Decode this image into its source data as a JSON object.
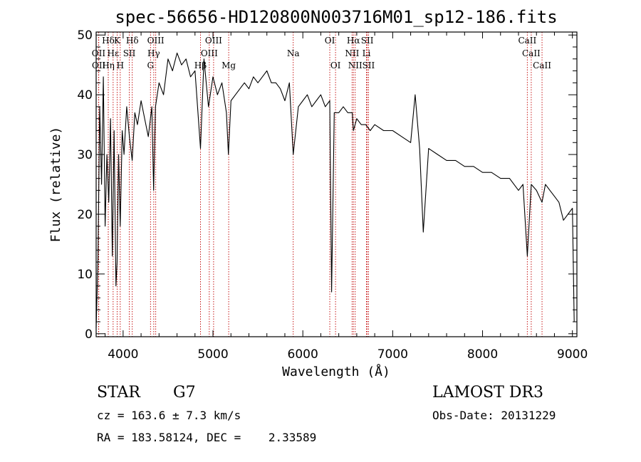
{
  "chart_data": {
    "type": "line",
    "title": "spec-56656-HD120800N003716M01_sp12-186.fits",
    "xlabel": "Wavelength (Å)",
    "ylabel": "Flux (relative)",
    "xlim": [
      3700,
      9050
    ],
    "ylim": [
      -0.5,
      50.5
    ],
    "x_ticks": [
      4000,
      5000,
      6000,
      7000,
      8000,
      9000
    ],
    "y_ticks": [
      0,
      10,
      20,
      30,
      40,
      50
    ],
    "grid": false,
    "series": [
      {
        "x": [
          3700,
          3720,
          3740,
          3760,
          3780,
          3800,
          3820,
          3840,
          3860,
          3880,
          3900,
          3920,
          3933,
          3950,
          3968,
          3990,
          4010,
          4040,
          4070,
          4101,
          4130,
          4160,
          4200,
          4240,
          4280,
          4320,
          4340,
          4360,
          4400,
          4450,
          4500,
          4550,
          4600,
          4650,
          4700,
          4750,
          4800,
          4861,
          4900,
          4950,
          5000,
          5050,
          5100,
          5150,
          5172,
          5200,
          5250,
          5300,
          5350,
          5400,
          5450,
          5500,
          5550,
          5600,
          5650,
          5700,
          5750,
          5800,
          5850,
          5893,
          5950,
          6000,
          6050,
          6100,
          6150,
          6200,
          6250,
          6300,
          6320,
          6350,
          6400,
          6450,
          6500,
          6550,
          6563,
          6600,
          6650,
          6700,
          6750,
          6800,
          6900,
          7000,
          7100,
          7200,
          7250,
          7300,
          7340,
          7400,
          7500,
          7600,
          7700,
          7800,
          7900,
          8000,
          8100,
          8200,
          8300,
          8400,
          8450,
          8498,
          8542,
          8600,
          8662,
          8700,
          8750,
          8800,
          8850,
          8900,
          8950,
          9000,
          9020
        ],
        "y": [
          1,
          12,
          38,
          25,
          43,
          18,
          30,
          22,
          36,
          13,
          34,
          8,
          12,
          30,
          18,
          34,
          30,
          38,
          33,
          29,
          37,
          35,
          39,
          36,
          33,
          38,
          24,
          38,
          42,
          40,
          46,
          44,
          47,
          45,
          46,
          43,
          44,
          31,
          46,
          38,
          43,
          40,
          42,
          37,
          30,
          39,
          40,
          41,
          42,
          41,
          43,
          42,
          43,
          44,
          42,
          42,
          41,
          39,
          42,
          30,
          38,
          39,
          40,
          38,
          39,
          40,
          38,
          39,
          7,
          37,
          37,
          38,
          37,
          37,
          34,
          36,
          35,
          35,
          34,
          35,
          34,
          34,
          33,
          32,
          40,
          31,
          17,
          31,
          30,
          29,
          29,
          28,
          28,
          27,
          27,
          26,
          26,
          24,
          25,
          13,
          25,
          24,
          22,
          25,
          24,
          23,
          22,
          19,
          20,
          21,
          2
        ]
      }
    ]
  },
  "lines": [
    {
      "label": "Hδ",
      "x": 3835,
      "row": 0
    },
    {
      "label": "K",
      "x": 3934,
      "row": 0
    },
    {
      "label": "Hδ",
      "x": 4102,
      "row": 0
    },
    {
      "label": "OIII",
      "x": 4363,
      "row": 0
    },
    {
      "label": "OIII",
      "x": 5007,
      "row": 0
    },
    {
      "label": "OI",
      "x": 6300,
      "row": 0
    },
    {
      "label": "Hα",
      "x": 6563,
      "row": 0
    },
    {
      "label": "SII",
      "x": 6717,
      "row": 0
    },
    {
      "label": "CaII",
      "x": 8498,
      "row": 0
    },
    {
      "label": "OII",
      "x": 3727,
      "row": 1
    },
    {
      "label": "Hε",
      "x": 3889,
      "row": 1
    },
    {
      "label": "SII",
      "x": 4069,
      "row": 1
    },
    {
      "label": "Hγ",
      "x": 4341,
      "row": 1
    },
    {
      "label": "OIII",
      "x": 4959,
      "row": 1
    },
    {
      "label": "Na",
      "x": 5893,
      "row": 1
    },
    {
      "label": "NII",
      "x": 6548,
      "row": 1
    },
    {
      "label": "Li",
      "x": 6708,
      "row": 1
    },
    {
      "label": "CaII",
      "x": 8542,
      "row": 1
    },
    {
      "label": "OII",
      "x": 3729,
      "row": 2
    },
    {
      "label": "Hη",
      "x": 3835,
      "row": 2
    },
    {
      "label": "H",
      "x": 3968,
      "row": 2
    },
    {
      "label": "G",
      "x": 4305,
      "row": 2
    },
    {
      "label": "Hβ",
      "x": 4861,
      "row": 2
    },
    {
      "label": "Mg",
      "x": 5175,
      "row": 2
    },
    {
      "label": "OI",
      "x": 6364,
      "row": 2
    },
    {
      "label": "NII",
      "x": 6583,
      "row": 2
    },
    {
      "label": "SII",
      "x": 6731,
      "row": 2
    },
    {
      "label": "CaII",
      "x": 8662,
      "row": 2
    }
  ],
  "info": {
    "object_type": "STAR",
    "subclass": "G7",
    "survey": "LAMOST DR3",
    "cz": "cz = 163.6 ± 7.3 km/s",
    "obs_date": "Obs-Date: 20131229",
    "coords": "RA = 183.58124, DEC =    2.33589"
  }
}
